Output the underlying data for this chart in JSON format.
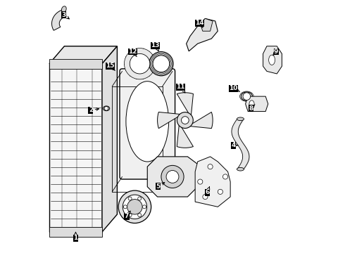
{
  "background_color": "#ffffff",
  "line_color": "#000000",
  "fig_width": 4.9,
  "fig_height": 3.6,
  "dpi": 100,
  "label_positions": {
    "1": [
      0.115,
      0.055,
      0.115,
      0.082
    ],
    "2": [
      0.175,
      0.565,
      0.218,
      0.572
    ],
    "3": [
      0.068,
      0.945,
      0.098,
      0.922
    ],
    "4": [
      0.742,
      0.425,
      0.768,
      0.425
    ],
    "5": [
      0.442,
      0.262,
      0.478,
      0.282
    ],
    "6": [
      0.638,
      0.238,
      0.648,
      0.262
    ],
    "7": [
      0.318,
      0.142,
      0.338,
      0.172
    ],
    "8": [
      0.812,
      0.572,
      0.828,
      0.588
    ],
    "9": [
      0.912,
      0.798,
      0.898,
      0.782
    ],
    "10": [
      0.742,
      0.652,
      0.775,
      0.635
    ],
    "11": [
      0.532,
      0.658,
      0.552,
      0.632
    ],
    "12": [
      0.342,
      0.798,
      0.358,
      0.778
    ],
    "13": [
      0.432,
      0.822,
      0.45,
      0.792
    ],
    "14": [
      0.608,
      0.912,
      0.622,
      0.892
    ],
    "15": [
      0.252,
      0.742,
      0.272,
      0.722
    ]
  }
}
